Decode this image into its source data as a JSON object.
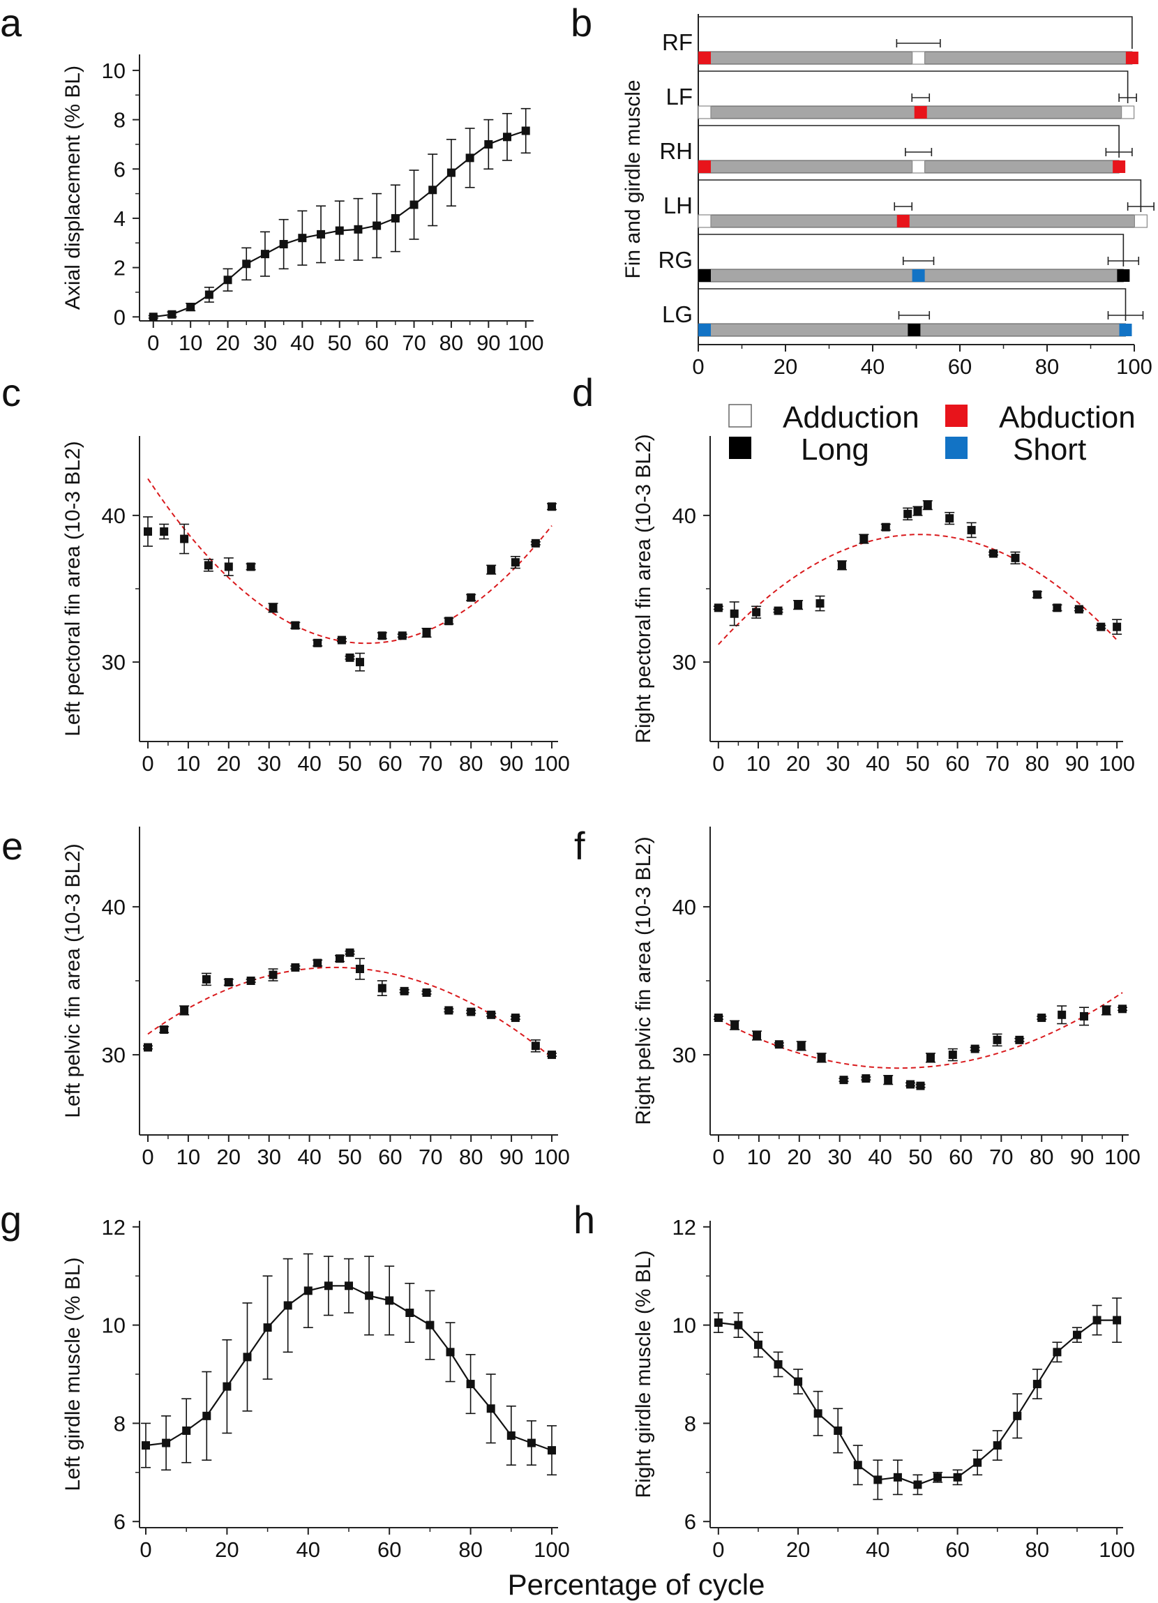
{
  "colors": {
    "adduction": "#ffffff",
    "abduction": "#e8141b",
    "long": "#000000",
    "short": "#1273c5",
    "bar": "#a6a6a6",
    "fit": "#d9191c",
    "data": "#111111"
  },
  "legend": [
    {
      "label": "Adduction",
      "key": "adduction"
    },
    {
      "label": "Abduction",
      "key": "abduction"
    },
    {
      "label": "Long",
      "key": "long"
    },
    {
      "label": "Short",
      "key": "short"
    }
  ],
  "x_title": "Percentage of cycle",
  "chart_data": [
    {
      "panel": "a",
      "type": "line",
      "ylabel": "Axial displacement (% BL)",
      "xlim": [
        0,
        100
      ],
      "ylim": [
        0,
        10
      ],
      "xticks": [
        0,
        10,
        20,
        30,
        40,
        50,
        60,
        70,
        80,
        90,
        100
      ],
      "yticks": [
        0,
        2,
        4,
        6,
        8,
        10
      ],
      "x": [
        0,
        5,
        10,
        15,
        20,
        25,
        30,
        35,
        40,
        45,
        50,
        55,
        60,
        65,
        70,
        75,
        80,
        85,
        90,
        95,
        100
      ],
      "y": [
        0,
        0.1,
        0.4,
        0.9,
        1.5,
        2.15,
        2.55,
        2.95,
        3.2,
        3.35,
        3.5,
        3.55,
        3.7,
        4.0,
        4.55,
        5.15,
        5.85,
        6.45,
        7.0,
        7.3,
        7.55
      ],
      "err": [
        0.05,
        0.1,
        0.15,
        0.3,
        0.45,
        0.65,
        0.9,
        1.0,
        1.1,
        1.15,
        1.2,
        1.25,
        1.3,
        1.35,
        1.4,
        1.45,
        1.35,
        1.2,
        1.0,
        0.95,
        0.9
      ]
    },
    {
      "panel": "b",
      "type": "gantt",
      "ylabel": "Fin and girdle muscle",
      "xlim": [
        0,
        100
      ],
      "xticks": [
        0,
        20,
        40,
        60,
        80,
        100
      ],
      "rows": [
        {
          "label": "RF",
          "start": "abduction",
          "mid": "adduction",
          "midx": 50.5,
          "midErr": 5,
          "end": "abduction",
          "endx": 99.5,
          "endErr": 0
        },
        {
          "label": "LF",
          "start": "adduction",
          "mid": "abduction",
          "midx": 51,
          "midErr": 2,
          "end": "adduction",
          "endx": 98.5,
          "endErr": 2
        },
        {
          "label": "RH",
          "start": "abduction",
          "mid": "adduction",
          "midx": 50.5,
          "midErr": 3,
          "end": "abduction",
          "endx": 96.5,
          "endErr": 3
        },
        {
          "label": "LH",
          "start": "adduction",
          "mid": "abduction",
          "midx": 47,
          "midErr": 2,
          "end": "adduction",
          "endx": 101.5,
          "endErr": 3
        },
        {
          "label": "RG",
          "start": "long",
          "mid": "short",
          "midx": 50.5,
          "midErr": 3.5,
          "end": "long",
          "endx": 97.5,
          "endErr": 3.5
        },
        {
          "label": "LG",
          "start": "short",
          "mid": "long",
          "midx": 49.5,
          "midErr": 3.5,
          "end": "short",
          "endx": 98,
          "endErr": 4
        }
      ]
    },
    {
      "panel": "c",
      "type": "scatter",
      "ylabel": "Left pectoral fin area (10-3 BL2)",
      "xlim": [
        0,
        100
      ],
      "ylim": [
        25,
        45
      ],
      "xticks": [
        0,
        10,
        20,
        30,
        40,
        50,
        60,
        70,
        80,
        90,
        100
      ],
      "yticks": [
        30,
        40
      ],
      "x": [
        0,
        4,
        9,
        15,
        20,
        25.5,
        31,
        36.5,
        42,
        48,
        50,
        52.5,
        58,
        63,
        69,
        74.5,
        80,
        85,
        91,
        96,
        100
      ],
      "y": [
        38.9,
        38.9,
        38.4,
        36.6,
        36.5,
        36.5,
        33.7,
        32.5,
        31.3,
        31.5,
        30.3,
        30.0,
        31.8,
        31.8,
        32.0,
        32.8,
        34.4,
        36.3,
        36.8,
        38.1,
        40.6
      ],
      "err": [
        1.0,
        0.5,
        1.0,
        0.4,
        0.6,
        0.2,
        0.3,
        0.2,
        0.2,
        0.1,
        0.1,
        0.6,
        0.2,
        0.1,
        0.3,
        0.2,
        0.2,
        0.3,
        0.4,
        0.1,
        0.2
      ],
      "fit": {
        "type": "quadratic",
        "x": [
          0,
          52,
          100
        ],
        "y": [
          42.5,
          31.3,
          39.3
        ]
      }
    },
    {
      "panel": "d",
      "type": "scatter",
      "ylabel": "Right pectoral fin area (10-3 BL2)",
      "xlim": [
        0,
        100
      ],
      "ylim": [
        25,
        45
      ],
      "xticks": [
        0,
        10,
        20,
        30,
        40,
        50,
        60,
        70,
        80,
        90,
        100
      ],
      "yticks": [
        30,
        40
      ],
      "x": [
        0,
        4,
        9.5,
        15,
        20,
        25.5,
        31,
        36.5,
        42,
        47.5,
        50,
        52.5,
        58,
        63.5,
        69,
        74.5,
        80,
        85,
        90.5,
        96,
        100
      ],
      "y": [
        33.7,
        33.3,
        33.4,
        33.5,
        33.9,
        34.0,
        36.6,
        38.4,
        39.2,
        40.1,
        40.3,
        40.7,
        39.8,
        39.0,
        37.4,
        37.1,
        34.6,
        33.7,
        33.6,
        32.4,
        32.4
      ],
      "err": [
        0.1,
        0.8,
        0.4,
        0.1,
        0.3,
        0.5,
        0.3,
        0.3,
        0.2,
        0.4,
        0.3,
        0.3,
        0.4,
        0.5,
        0.1,
        0.4,
        0.2,
        0.2,
        0.1,
        0.1,
        0.5
      ],
      "fit": {
        "type": "quadratic",
        "x": [
          0,
          50,
          100
        ],
        "y": [
          31.2,
          38.7,
          31.5
        ]
      }
    },
    {
      "panel": "e",
      "type": "scatter",
      "ylabel": "Left pelvic fin area (10-3 BL2)",
      "xlim": [
        0,
        100
      ],
      "ylim": [
        25,
        45
      ],
      "xticks": [
        0,
        10,
        20,
        30,
        40,
        50,
        60,
        70,
        80,
        90,
        100
      ],
      "yticks": [
        30,
        40
      ],
      "x": [
        0,
        4,
        9,
        14.5,
        20,
        25.5,
        31,
        36.5,
        42,
        47.5,
        50,
        52.5,
        58,
        63.5,
        69,
        74.5,
        80,
        85,
        91,
        96,
        100
      ],
      "y": [
        30.5,
        31.7,
        33.0,
        35.1,
        34.9,
        35.0,
        35.4,
        35.9,
        36.2,
        36.5,
        36.9,
        35.8,
        34.5,
        34.3,
        34.2,
        33.0,
        32.9,
        32.7,
        32.5,
        30.6,
        30.0
      ],
      "err": [
        0.1,
        0.2,
        0.3,
        0.4,
        0.2,
        0.1,
        0.4,
        0.1,
        0.2,
        0.2,
        0.1,
        0.7,
        0.5,
        0.1,
        0.1,
        0.1,
        0.1,
        0.1,
        0.1,
        0.4,
        0.1
      ],
      "fit": {
        "type": "quadratic",
        "x": [
          0,
          47,
          100
        ],
        "y": [
          31.4,
          35.9,
          29.8
        ]
      }
    },
    {
      "panel": "f",
      "type": "scatter",
      "ylabel": "Right pelvic fin area (10-3 BL2)",
      "xlim": [
        0,
        100
      ],
      "ylim": [
        25,
        45
      ],
      "xticks": [
        0,
        10,
        20,
        30,
        40,
        50,
        60,
        70,
        80,
        90,
        100
      ],
      "yticks": [
        30,
        40
      ],
      "x": [
        0,
        4,
        9.5,
        15,
        20.5,
        25.5,
        31,
        36.5,
        42,
        47.5,
        50,
        52.5,
        58,
        63.5,
        69,
        74.5,
        80,
        85,
        90.5,
        96,
        100
      ],
      "y": [
        32.5,
        32.0,
        31.3,
        30.7,
        30.6,
        29.8,
        28.3,
        28.4,
        28.3,
        28.0,
        27.9,
        29.8,
        30.0,
        30.4,
        31.0,
        31.0,
        32.5,
        32.7,
        32.6,
        33.0,
        33.1
      ],
      "err": [
        0.1,
        0.3,
        0.3,
        0.1,
        0.3,
        0.3,
        0.1,
        0.1,
        0.3,
        0.1,
        0.1,
        0.3,
        0.4,
        0.1,
        0.4,
        0.1,
        0.1,
        0.6,
        0.6,
        0.3,
        0.1
      ],
      "fit": {
        "type": "quadratic",
        "x": [
          0,
          45,
          100
        ],
        "y": [
          32.4,
          29.1,
          34.2
        ]
      }
    },
    {
      "panel": "g",
      "type": "line",
      "ylabel": "Left girdle muscle (% BL)",
      "xlim": [
        0,
        100
      ],
      "ylim": [
        6,
        12
      ],
      "xticks": [
        0,
        20,
        40,
        60,
        80,
        100
      ],
      "yticks": [
        6,
        8,
        10,
        12
      ],
      "x": [
        0,
        5,
        10,
        15,
        20,
        25,
        30,
        35,
        40,
        45,
        50,
        55,
        60,
        65,
        70,
        75,
        80,
        85,
        90,
        95,
        100
      ],
      "y": [
        7.55,
        7.6,
        7.85,
        8.15,
        8.75,
        9.35,
        9.95,
        10.4,
        10.7,
        10.8,
        10.8,
        10.6,
        10.5,
        10.25,
        10.0,
        9.45,
        8.8,
        8.3,
        7.75,
        7.6,
        7.45
      ],
      "err": [
        0.45,
        0.55,
        0.65,
        0.9,
        0.95,
        1.1,
        1.05,
        0.95,
        0.75,
        0.6,
        0.55,
        0.8,
        0.7,
        0.6,
        0.7,
        0.6,
        0.6,
        0.7,
        0.6,
        0.45,
        0.5
      ]
    },
    {
      "panel": "h",
      "type": "line",
      "ylabel": "Right girdle muscle (% BL)",
      "xlim": [
        0,
        100
      ],
      "ylim": [
        6,
        12
      ],
      "xticks": [
        0,
        20,
        40,
        60,
        80,
        100
      ],
      "yticks": [
        6,
        8,
        10,
        12
      ],
      "x": [
        0,
        5,
        10,
        15,
        20,
        25,
        30,
        35,
        40,
        45,
        50,
        55,
        60,
        65,
        70,
        75,
        80,
        85,
        90,
        95,
        100
      ],
      "y": [
        10.05,
        10.0,
        9.6,
        9.2,
        8.85,
        8.2,
        7.85,
        7.15,
        6.85,
        6.9,
        6.75,
        6.9,
        6.9,
        7.2,
        7.55,
        8.15,
        8.8,
        9.45,
        9.8,
        10.1,
        10.1
      ],
      "err": [
        0.2,
        0.25,
        0.25,
        0.25,
        0.25,
        0.45,
        0.45,
        0.4,
        0.4,
        0.35,
        0.2,
        0.1,
        0.15,
        0.25,
        0.3,
        0.45,
        0.3,
        0.2,
        0.15,
        0.3,
        0.45
      ]
    }
  ]
}
